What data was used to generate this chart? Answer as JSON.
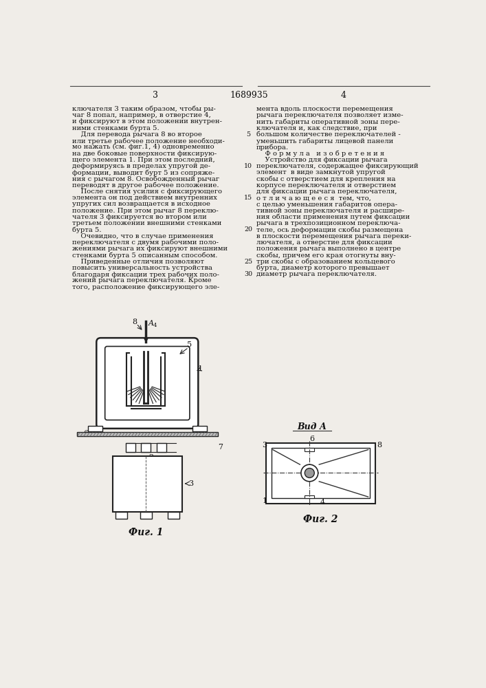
{
  "page_bg": "#f0ede8",
  "text_color": "#111111",
  "patent_number": "1689935",
  "page_numbers": [
    "3",
    "4"
  ],
  "left_column_text": [
    "ключателя 3 таким образом, чтобы ры-",
    "чаг 8 попал, например, в отверстие 4,",
    "и фиксируют в этом положении внутрен-",
    "ними стенками бурта 5.",
    "    Для перевода рычага 8 во второе",
    "или третье рабочее положение необходи-",
    "мо нажать (см. фиг.1, 4) одновременно",
    "на две боковые поверхности фиксирую-",
    "щего элемента 1. При этом последний,",
    "деформируясь в пределах упругой де-",
    "формации, выводит бурт 5 из сопряже-",
    "ния с рычагом 8. Освобожденный рычаг",
    "переводят в другое рабочее положение.",
    "    После снятия усилия с фиксирующего",
    "элемента он под действием внутренних",
    "упругих сил возвращается в исходное",
    "положение. При этом рычаг 8 переклю-",
    "чателя 3 фиксируется во втором или",
    "третьем положении внешними стенками",
    "бурта 5.",
    "    Очевидно, что в случае применения",
    "переключателя с двумя рабочими поло-",
    "жениями рычага их фиксируют внешними",
    "стенками бурта 5 описанным способом.",
    "    Приведенные отличия позволяют",
    "повысить универсальность устройства",
    "благодаря фиксации трех рабочих поло-",
    "жений рычага переключателя. Кроме",
    "того, расположение фиксирующего эле-"
  ],
  "right_column_text": [
    "мента вдоль плоскости перемещения",
    "рычага переключателя позволяет изме-",
    "нить габариты оперативной зоны пере-",
    "ключателя и, как следствие, при",
    "большом количестве переключателей -",
    "уменьшить габариты лицевой панели",
    "прибора.",
    "    Ф о р м у л а   и з о б р е т е н и я",
    "    Устройство для фиксации рычага",
    "переключателя, содержащее фиксирующий",
    "элемент  в виде замкнутой упругой",
    "скобы с отверстием для крепления на",
    "корпусе переключателя и отверстием",
    "для фиксации рычага переключателя,",
    "о т л и ч а ю щ е е с я  тем, что,",
    "с целью уменьшения габаритов опера-",
    "тивной зоны переключателя и расшире-",
    "ния области применения путем фиксации",
    "рычага в трехпозиционном переключа-",
    "теле, ось деформации скобы размещена",
    "в плоскости перемещения рычага переки-",
    "лючателя, а отверстие для фиксации",
    "положения рычага выполнено в центре",
    "скобы, причем его края отогнуты вну-",
    "три скобы с образованием кольцевого",
    "бурта, диаметр которого превышает",
    "диаметр рычага переключателя."
  ],
  "fig1_label": "Фиг. 1",
  "fig2_label": "Фиг. 2",
  "vid_a_label": "Вид А"
}
